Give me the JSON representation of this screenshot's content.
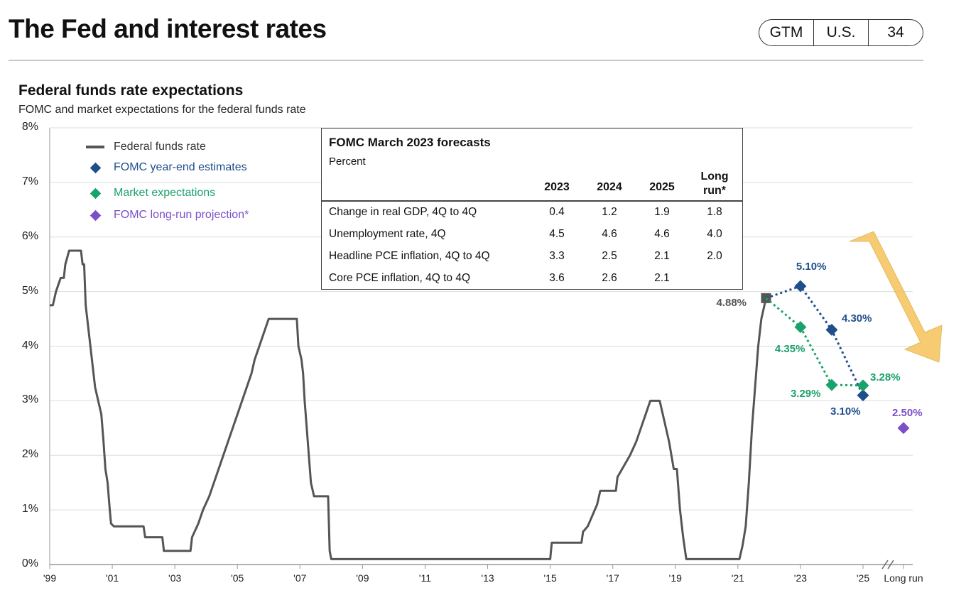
{
  "header": {
    "title": "The Fed and interest rates",
    "badge": [
      "GTM",
      "U.S.",
      "34"
    ]
  },
  "chart_data": {
    "type": "line",
    "title": "Federal funds rate expectations",
    "subtitle": "FOMC and market expectations for the federal funds rate",
    "ylim": [
      0,
      8
    ],
    "yticks": [
      "8%",
      "7%",
      "6%",
      "5%",
      "4%",
      "3%",
      "2%",
      "1%",
      "0%"
    ],
    "xlim": [
      1999,
      2026.35
    ],
    "xticks": [
      "'99",
      "'01",
      "'03",
      "'05",
      "'07",
      "'09",
      "'11",
      "'13",
      "'15",
      "'17",
      "'19",
      "'21",
      "'23",
      "'25",
      "Long run"
    ],
    "xtick_years": [
      1999,
      2001,
      2003,
      2005,
      2007,
      2009,
      2011,
      2013,
      2015,
      2017,
      2019,
      2021,
      2023,
      2025,
      2026.35
    ],
    "grid": true,
    "legend": {
      "placement": "top-left",
      "items": [
        {
          "label": "Federal funds rate",
          "symbol": "line",
          "color": "#555555"
        },
        {
          "label": "FOMC year-end estimates",
          "symbol": "diamond",
          "color": "#1f4e8c"
        },
        {
          "label": "Market expectations",
          "symbol": "diamond",
          "color": "#1aa26b"
        },
        {
          "label": "FOMC long-run projection*",
          "symbol": "diamond",
          "color": "#7b4fc8"
        }
      ]
    },
    "series": [
      {
        "name": "Federal funds rate",
        "color": "#555555",
        "points": [
          [
            1999.0,
            4.75
          ],
          [
            1999.1,
            4.75
          ],
          [
            1999.2,
            5.0
          ],
          [
            1999.35,
            5.25
          ],
          [
            1999.45,
            5.25
          ],
          [
            1999.5,
            5.5
          ],
          [
            1999.62,
            5.75
          ],
          [
            1999.9,
            5.75
          ],
          [
            2000.0,
            5.75
          ],
          [
            2000.05,
            5.5
          ],
          [
            2000.1,
            5.5
          ],
          [
            2000.15,
            4.75
          ],
          [
            2000.3,
            4.0
          ],
          [
            2000.45,
            3.25
          ],
          [
            2000.55,
            3.0
          ],
          [
            2000.65,
            2.75
          ],
          [
            2000.72,
            2.25
          ],
          [
            2000.78,
            1.75
          ],
          [
            2000.85,
            1.5
          ],
          [
            2000.92,
            1.0
          ],
          [
            2000.96,
            0.75
          ],
          [
            2001.05,
            0.7
          ],
          [
            2002.0,
            0.7
          ],
          [
            2002.05,
            0.5
          ],
          [
            2002.6,
            0.5
          ],
          [
            2002.65,
            0.25
          ],
          [
            2003.5,
            0.25
          ],
          [
            2003.55,
            0.5
          ],
          [
            2003.75,
            0.75
          ],
          [
            2003.9,
            1.0
          ],
          [
            2004.1,
            1.25
          ],
          [
            2004.25,
            1.5
          ],
          [
            2004.4,
            1.75
          ],
          [
            2004.55,
            2.0
          ],
          [
            2004.7,
            2.25
          ],
          [
            2004.85,
            2.5
          ],
          [
            2005.0,
            2.75
          ],
          [
            2005.15,
            3.0
          ],
          [
            2005.3,
            3.25
          ],
          [
            2005.45,
            3.5
          ],
          [
            2005.55,
            3.75
          ],
          [
            2005.7,
            4.0
          ],
          [
            2005.85,
            4.25
          ],
          [
            2006.0,
            4.5
          ],
          [
            2006.9,
            4.5
          ],
          [
            2006.95,
            4.0
          ],
          [
            2007.05,
            3.75
          ],
          [
            2007.1,
            3.5
          ],
          [
            2007.15,
            3.0
          ],
          [
            2007.25,
            2.25
          ],
          [
            2007.35,
            1.5
          ],
          [
            2007.45,
            1.25
          ],
          [
            2007.9,
            1.25
          ],
          [
            2007.95,
            0.25
          ],
          [
            2008.0,
            0.1
          ],
          [
            2009.0,
            0.1
          ],
          [
            2011.0,
            0.1
          ],
          [
            2013.0,
            0.1
          ],
          [
            2015.0,
            0.1
          ],
          [
            2015.05,
            0.4
          ],
          [
            2016.0,
            0.4
          ],
          [
            2016.05,
            0.6
          ],
          [
            2016.2,
            0.7
          ],
          [
            2016.35,
            0.9
          ],
          [
            2016.5,
            1.1
          ],
          [
            2016.6,
            1.35
          ],
          [
            2017.1,
            1.35
          ],
          [
            2017.15,
            1.6
          ],
          [
            2017.35,
            1.8
          ],
          [
            2017.55,
            2.0
          ],
          [
            2017.75,
            2.25
          ],
          [
            2017.9,
            2.5
          ],
          [
            2018.05,
            2.75
          ],
          [
            2018.2,
            3.0
          ],
          [
            2018.5,
            3.0
          ],
          [
            2018.6,
            2.75
          ],
          [
            2018.8,
            2.25
          ],
          [
            2018.95,
            1.75
          ],
          [
            2019.05,
            1.75
          ],
          [
            2019.15,
            1.0
          ],
          [
            2019.25,
            0.5
          ],
          [
            2019.35,
            0.1
          ],
          [
            2021.05,
            0.1
          ],
          [
            2021.15,
            0.35
          ],
          [
            2021.25,
            0.7
          ],
          [
            2021.35,
            1.5
          ],
          [
            2021.45,
            2.5
          ],
          [
            2021.55,
            3.25
          ],
          [
            2021.65,
            4.0
          ],
          [
            2021.75,
            4.5
          ],
          [
            2021.9,
            4.88
          ]
        ]
      },
      {
        "name": "FOMC year-end estimates",
        "color": "#1f4e8c",
        "points": [
          [
            2023.0,
            5.1
          ],
          [
            2024.0,
            4.3
          ],
          [
            2025.0,
            3.1
          ]
        ],
        "labels": [
          "5.10%",
          "4.30%",
          "3.10%"
        ]
      },
      {
        "name": "Market expectations",
        "color": "#1aa26b",
        "points": [
          [
            2023.0,
            4.35
          ],
          [
            2024.0,
            3.29
          ],
          [
            2025.0,
            3.28
          ]
        ],
        "labels": [
          "4.35%",
          "3.29%",
          "3.28%"
        ]
      },
      {
        "name": "FOMC long-run projection*",
        "color": "#7b4fc8",
        "points": [
          [
            2026.35,
            2.5
          ]
        ],
        "labels": [
          "2.50%"
        ]
      }
    ],
    "annotations": [
      {
        "text": "4.88%",
        "x": 2022.3,
        "y": 4.88
      }
    ],
    "forecast_table": {
      "title": "FOMC March 2023 forecasts",
      "unit": "Percent",
      "columns": [
        "2023",
        "2024",
        "2025",
        "Long run*"
      ],
      "rows": [
        {
          "label": "Change in real GDP, 4Q to 4Q",
          "values": [
            "0.4",
            "1.2",
            "1.9",
            "1.8"
          ]
        },
        {
          "label": "Unemployment rate, 4Q",
          "values": [
            "4.5",
            "4.6",
            "4.6",
            "4.0"
          ]
        },
        {
          "label": "Headline PCE inflation, 4Q to 4Q",
          "values": [
            "3.3",
            "2.5",
            "2.1",
            "2.0"
          ]
        },
        {
          "label": "Core PCE inflation, 4Q to 4Q",
          "values": [
            "3.6",
            "2.6",
            "2.1",
            ""
          ]
        }
      ]
    }
  }
}
